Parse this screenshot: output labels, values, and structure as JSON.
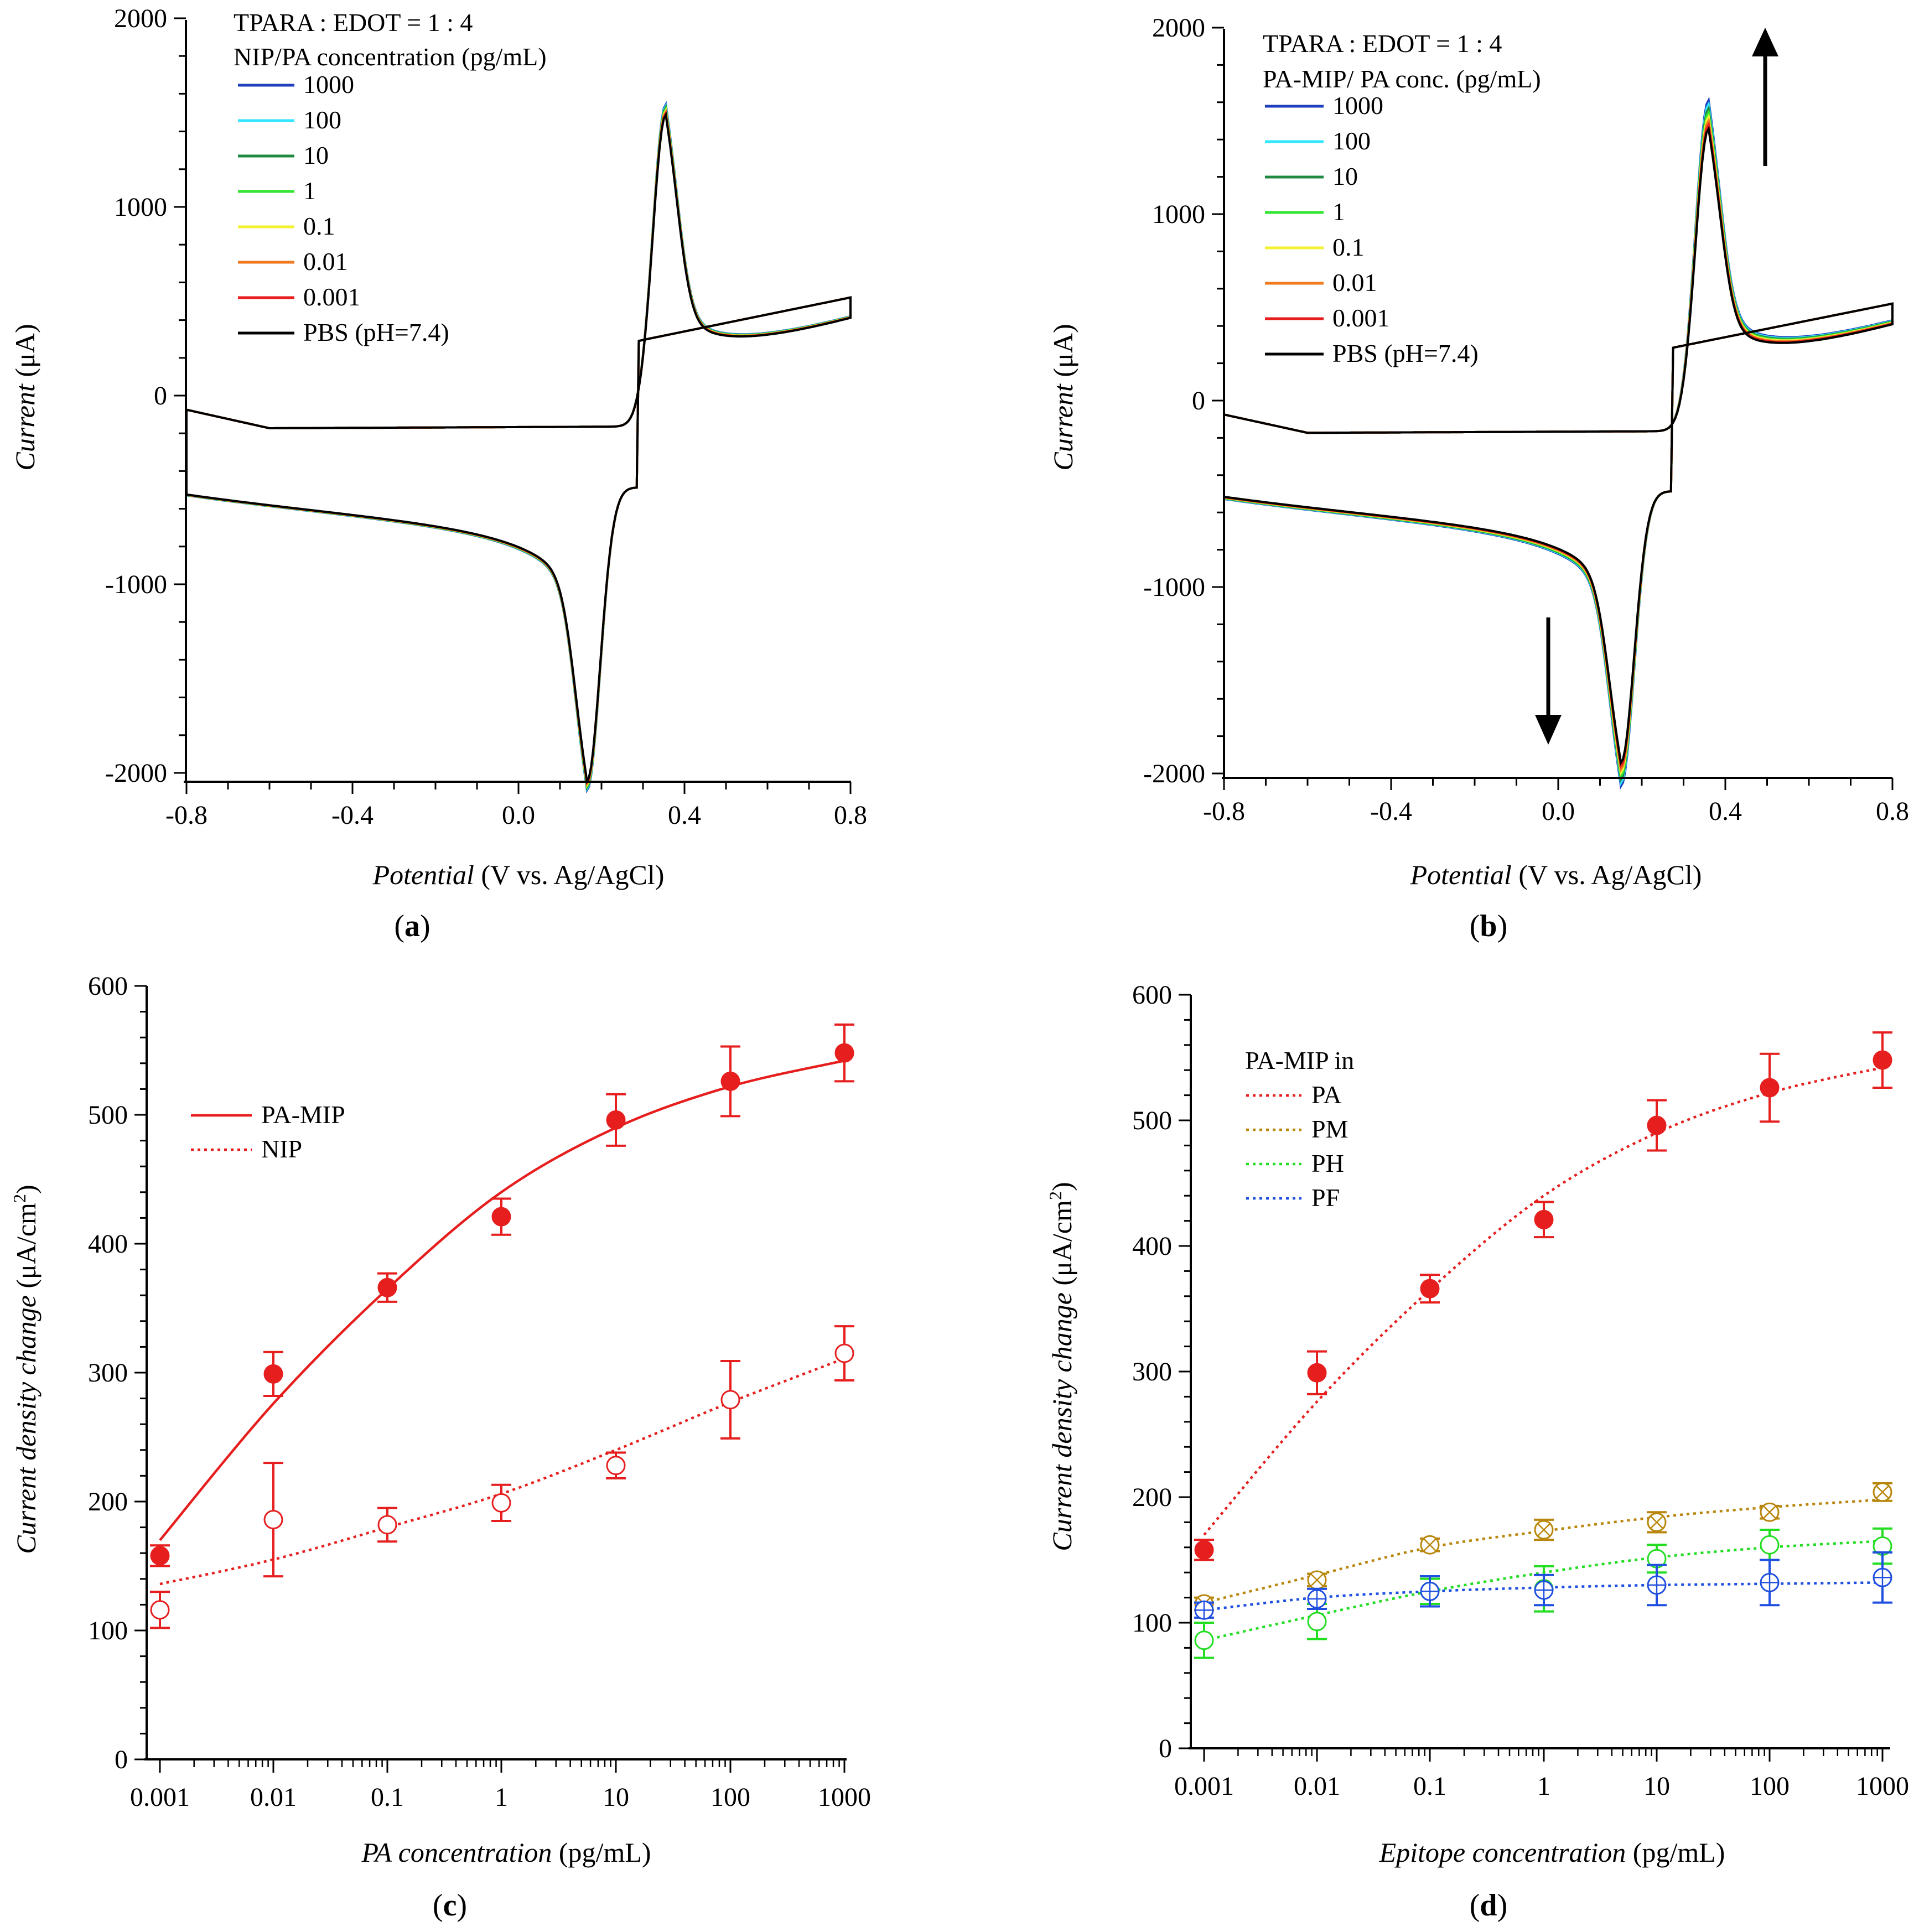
{
  "chart_data": [
    {
      "panel": "(a)",
      "type": "line",
      "subtype": "cyclic-voltammogram",
      "xlabel_italic": "Potential",
      "xlabel_rest": " (V vs. Ag/AgCl)",
      "ylabel_italic": "Current",
      "ylabel_rest": " (μA)",
      "xlim": [
        -0.85,
        0.8
      ],
      "ylim": [
        -2000,
        2000
      ],
      "xticks": [
        "-0.8",
        "-0.4",
        "0.0",
        "0.4",
        "0.8"
      ],
      "yticks": [
        "-2000",
        "-1000",
        "0",
        "1000",
        "2000"
      ],
      "legend_title_1": "TPARA : EDOT = 1 : 4",
      "legend_title_2": "NIP/PA concentration (pg/mL)",
      "cv": {
        "E0": 0.265,
        "half_sep": 0.09,
        "width": 0.045,
        "cap_top": 140,
        "cap_bottom": -130,
        "ox_base": 1650,
        "red_base": 1560,
        "ox_step": 8,
        "red_step": 7
      },
      "series": [
        {
          "name": "1000",
          "color": "#1f3fbf"
        },
        {
          "name": "100",
          "color": "#33e6ff"
        },
        {
          "name": "10",
          "color": "#1f8a3f"
        },
        {
          "name": "1",
          "color": "#33e633"
        },
        {
          "name": "0.1",
          "color": "#f2f233"
        },
        {
          "name": "0.01",
          "color": "#f07a1e"
        },
        {
          "name": "0.001",
          "color": "#e61e1e"
        },
        {
          "name": "PBS (pH=7.4)",
          "color": "#000000"
        }
      ]
    },
    {
      "panel": "(b)",
      "type": "line",
      "subtype": "cyclic-voltammogram",
      "xlabel_italic": "Potential",
      "xlabel_rest": " (V vs. Ag/AgCl)",
      "ylabel_italic": "Current",
      "ylabel_rest": " (μA)",
      "xlim": [
        -0.8,
        0.8
      ],
      "ylim": [
        -2000,
        2000
      ],
      "xticks": [
        "-0.8",
        "-0.4",
        "0.0",
        "0.4",
        "0.8"
      ],
      "yticks": [
        "-2000",
        "-1000",
        "0",
        "1000",
        "2000"
      ],
      "legend_title_1": "TPARA : EDOT = 1 : 4",
      "legend_title_2": "PA-MIP/ PA conc. (pg/mL)",
      "cv": {
        "E0": 0.26,
        "half_sep": 0.1,
        "width": 0.045,
        "cap_top": 180,
        "cap_bottom": -200,
        "ox_base": 1620,
        "red_base": 1460,
        "ox_step": 22,
        "red_step": 18
      },
      "series": [
        {
          "name": "1000",
          "color": "#1f3fbf"
        },
        {
          "name": "100",
          "color": "#33e6ff"
        },
        {
          "name": "10",
          "color": "#1f8a3f"
        },
        {
          "name": "1",
          "color": "#33e633"
        },
        {
          "name": "0.1",
          "color": "#f2f233"
        },
        {
          "name": "0.01",
          "color": "#f07a1e"
        },
        {
          "name": "0.001",
          "color": "#e61e1e"
        },
        {
          "name": "PBS (pH=7.4)",
          "color": "#000000"
        }
      ]
    },
    {
      "panel": "(c)",
      "type": "scatter",
      "categories": [
        "0.001",
        "0.01",
        "0.1",
        "1",
        "10",
        "100",
        "1000"
      ],
      "xlabel_italic": "PA concentration",
      "xlabel_rest": " (pg/mL)",
      "ylabel_italic": "Current density change",
      "ylabel_rest": " (μA/cm",
      "ylabel_sup": "2",
      "ylabel_close": ")",
      "ylim": [
        0,
        600
      ],
      "yticks": [
        "0",
        "100",
        "200",
        "300",
        "400",
        "500",
        "600"
      ],
      "legend_title": "",
      "series": [
        {
          "name": "PA-MIP",
          "color": "#e61e1e",
          "marker": "filled-circle",
          "line": "solid",
          "values": [
            158,
            299,
            366,
            421,
            496,
            526,
            548
          ],
          "errors": [
            8,
            17,
            11,
            14,
            20,
            27,
            22
          ],
          "fit": [
            170,
            276,
            365,
            440,
            490,
            522,
            542
          ]
        },
        {
          "name": "NIP",
          "color": "#e61e1e",
          "marker": "open-circle",
          "line": "dotted",
          "values": [
            116,
            186,
            182,
            199,
            228,
            279,
            315
          ],
          "errors": [
            14,
            44,
            13,
            14,
            10,
            30,
            21
          ],
          "fit": [
            136,
            155,
            180,
            206,
            240,
            277,
            311
          ]
        }
      ]
    },
    {
      "panel": "(d)",
      "type": "scatter",
      "categories": [
        "0.001",
        "0.01",
        "0.1",
        "1",
        "10",
        "100",
        "1000"
      ],
      "xlabel_italic": "Epitope concentration",
      "xlabel_rest": " (pg/mL)",
      "ylabel_italic": "Current density change",
      "ylabel_rest": " (μA/cm",
      "ylabel_sup": "2",
      "ylabel_close": ")",
      "ylim": [
        0,
        600
      ],
      "yticks": [
        "0",
        "100",
        "200",
        "300",
        "400",
        "500",
        "600"
      ],
      "legend_title": "PA-MIP in",
      "series": [
        {
          "name": "PA",
          "color": "#e61e1e",
          "marker": "filled-circle",
          "line": "dotted",
          "values": [
            158,
            299,
            366,
            421,
            496,
            526,
            548
          ],
          "errors": [
            8,
            17,
            11,
            14,
            20,
            27,
            22
          ],
          "fit": [
            170,
            276,
            365,
            440,
            490,
            522,
            542
          ]
        },
        {
          "name": "PM",
          "color": "#b8860b",
          "marker": "circle-x",
          "line": "dotted",
          "values": [
            115,
            134,
            162,
            174,
            180,
            188,
            204
          ],
          "errors": [
            5,
            5,
            5,
            8,
            8,
            5,
            7
          ],
          "fit": [
            116,
            138,
            160,
            173,
            184,
            192,
            198
          ]
        },
        {
          "name": "PH",
          "color": "#22dd22",
          "marker": "open-circle",
          "line": "dotted",
          "values": [
            86,
            101,
            125,
            127,
            151,
            162,
            161
          ],
          "errors": [
            14,
            14,
            10,
            18,
            11,
            12,
            14
          ],
          "fit": [
            86,
            106,
            125,
            140,
            152,
            160,
            165
          ]
        },
        {
          "name": "PF",
          "color": "#1f4fe0",
          "marker": "circle-plus",
          "line": "dotted",
          "values": [
            110,
            119,
            125,
            126,
            130,
            132,
            136
          ],
          "errors": [
            6,
            8,
            12,
            12,
            16,
            18,
            20
          ],
          "fit": [
            110,
            120,
            125,
            128,
            130,
            131,
            132
          ]
        }
      ]
    }
  ],
  "labels": {
    "a": "(a)",
    "b": "(b)",
    "c": "(c)",
    "d": "(d)"
  },
  "arrows": {
    "up": "up-arrow",
    "down": "down-arrow"
  }
}
